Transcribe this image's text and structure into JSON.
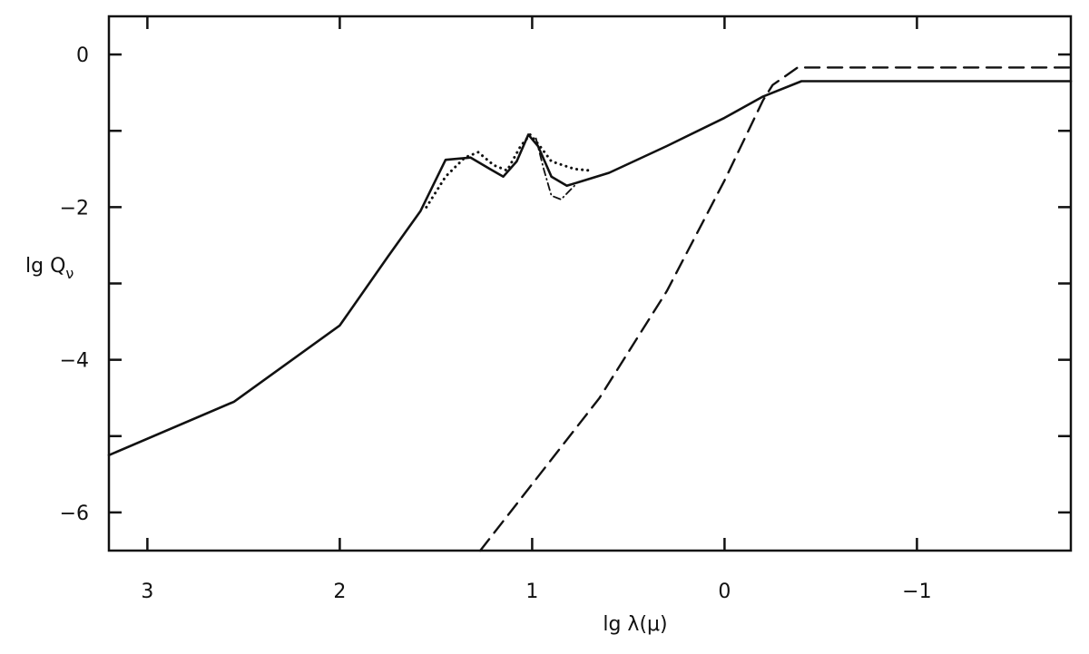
{
  "chart_data": {
    "type": "line",
    "title": "",
    "xlabel": "lg λ(μ)",
    "ylabel": "lg Q",
    "ylabel_sub": "ν",
    "xlim": [
      3.2,
      -1.8
    ],
    "ylim": [
      -6.5,
      0.5
    ],
    "x_ticks": [
      3,
      2,
      1,
      0,
      -1
    ],
    "x_tick_labels": [
      "3",
      "2",
      "1",
      "0",
      "−1"
    ],
    "y_ticks": [
      0,
      -2,
      -4,
      -6
    ],
    "y_tick_labels": [
      "0",
      "−2",
      "−4",
      "−6"
    ],
    "minor_y_ticks": [
      -1,
      -3,
      -5
    ],
    "grid": false,
    "legend": "none",
    "series": [
      {
        "style": "solid",
        "points": [
          [
            3.2,
            -5.25
          ],
          [
            2.55,
            -4.55
          ],
          [
            2.0,
            -3.55
          ],
          [
            1.75,
            -2.65
          ],
          [
            1.58,
            -2.05
          ],
          [
            1.45,
            -1.38
          ],
          [
            1.32,
            -1.35
          ],
          [
            1.22,
            -1.5
          ],
          [
            1.15,
            -1.6
          ],
          [
            1.08,
            -1.4
          ],
          [
            1.02,
            -1.05
          ],
          [
            0.97,
            -1.2
          ],
          [
            0.9,
            -1.6
          ],
          [
            0.82,
            -1.72
          ],
          [
            0.6,
            -1.55
          ],
          [
            0.3,
            -1.2
          ],
          [
            0.0,
            -0.83
          ],
          [
            -0.2,
            -0.55
          ],
          [
            -0.4,
            -0.35
          ],
          [
            -1.8,
            -0.35
          ]
        ]
      },
      {
        "style": "dotted",
        "points": [
          [
            1.55,
            -2.0
          ],
          [
            1.45,
            -1.6
          ],
          [
            1.35,
            -1.35
          ],
          [
            1.28,
            -1.28
          ],
          [
            1.2,
            -1.45
          ],
          [
            1.13,
            -1.52
          ],
          [
            1.06,
            -1.2
          ],
          [
            1.01,
            -1.05
          ],
          [
            0.96,
            -1.2
          ],
          [
            0.9,
            -1.4
          ],
          [
            0.78,
            -1.5
          ],
          [
            0.7,
            -1.52
          ]
        ]
      },
      {
        "style": "dashdot",
        "points": [
          [
            0.98,
            -1.1
          ],
          [
            0.94,
            -1.5
          ],
          [
            0.9,
            -1.85
          ],
          [
            0.85,
            -1.9
          ],
          [
            0.78,
            -1.72
          ]
        ]
      },
      {
        "style": "dashed",
        "points": [
          [
            1.27,
            -6.5
          ],
          [
            0.65,
            -4.5
          ],
          [
            0.3,
            -3.1
          ],
          [
            0.0,
            -1.65
          ],
          [
            -0.2,
            -0.6
          ],
          [
            -0.25,
            -0.4
          ],
          [
            -0.38,
            -0.17
          ],
          [
            -1.8,
            -0.17
          ]
        ]
      }
    ]
  }
}
